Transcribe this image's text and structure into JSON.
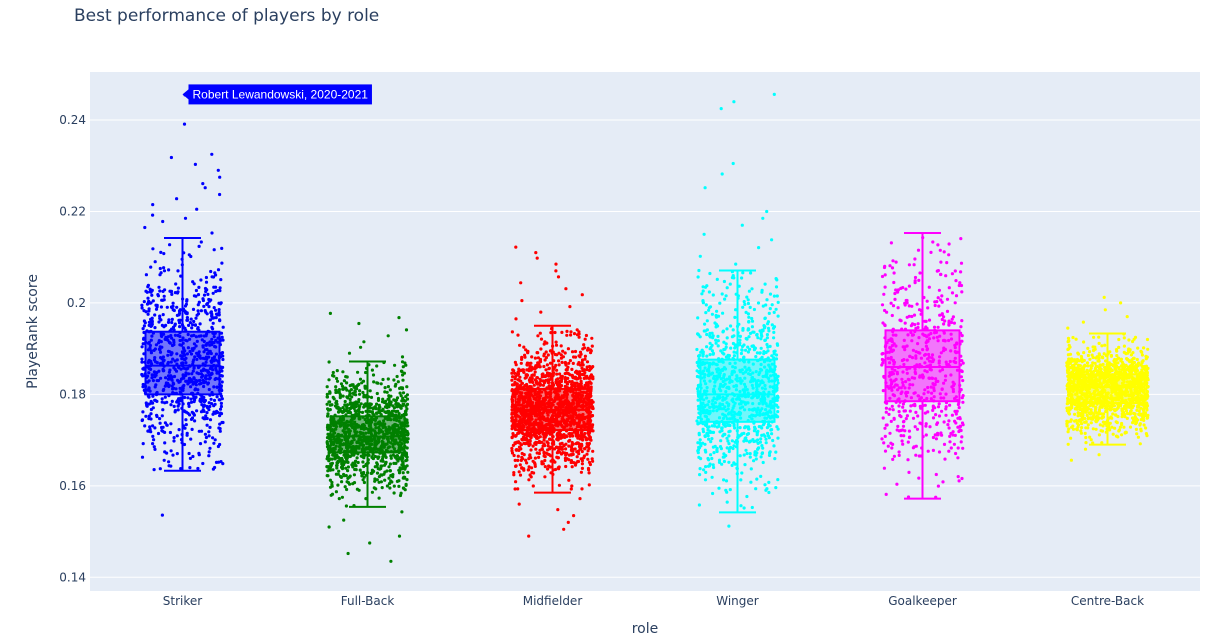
{
  "chart_data": {
    "type": "box",
    "title": "Best performance of players by role",
    "xlabel": "role",
    "ylabel": "PlayeRank score",
    "ylim": [
      0.137,
      0.2505
    ],
    "yticks": [
      0.14,
      0.16,
      0.18,
      0.2,
      0.22,
      0.24
    ],
    "ytick_labels": [
      "0.14",
      "0.16",
      "0.18",
      "0.2",
      "0.22",
      "0.24"
    ],
    "grid": true,
    "background": "#E5ECF6",
    "categories": [
      "Striker",
      "Full-Back",
      "Midfielder",
      "Winger",
      "Goalkeeper",
      "Centre-Back"
    ],
    "series": [
      {
        "category": "Striker",
        "color": "#0000ff",
        "points_shown": "all",
        "n": 900,
        "whisker_low": 0.1633,
        "q1": 0.18,
        "median": 0.1863,
        "q3": 0.1937,
        "whisker_high": 0.2142,
        "outliers": [
          0.2153,
          0.2165,
          0.2178,
          0.2185,
          0.2192,
          0.2205,
          0.2215,
          0.2228,
          0.2237,
          0.2252,
          0.2261,
          0.2275,
          0.229,
          0.2303,
          0.2318,
          0.2325,
          0.2391,
          0.2455,
          0.1536
        ]
      },
      {
        "category": "Full-Back",
        "color": "#008000",
        "points_shown": "all",
        "n": 1200,
        "whisker_low": 0.1554,
        "q1": 0.1673,
        "median": 0.1708,
        "q3": 0.1752,
        "whisker_high": 0.1872,
        "outliers": [
          0.1882,
          0.189,
          0.1903,
          0.1915,
          0.1928,
          0.1941,
          0.1955,
          0.1968,
          0.1977,
          0.1543,
          0.1525,
          0.151,
          0.149,
          0.1475,
          0.1452,
          0.1435
        ]
      },
      {
        "category": "Midfielder",
        "color": "#ff0000",
        "points_shown": "all",
        "n": 1600,
        "whisker_low": 0.1585,
        "q1": 0.1722,
        "median": 0.1766,
        "q3": 0.1812,
        "whisker_high": 0.195,
        "outliers": [
          0.1965,
          0.198,
          0.1992,
          0.2005,
          0.2018,
          0.2031,
          0.2044,
          0.2057,
          0.207,
          0.2085,
          0.2098,
          0.211,
          0.2122,
          0.1572,
          0.156,
          0.1548,
          0.1535,
          0.152,
          0.1505,
          0.149
        ]
      },
      {
        "category": "Winger",
        "color": "#00ffff",
        "points_shown": "all",
        "n": 1000,
        "whisker_low": 0.1542,
        "q1": 0.174,
        "median": 0.18,
        "q3": 0.1876,
        "whisker_high": 0.2071,
        "outliers": [
          0.2085,
          0.2102,
          0.2121,
          0.2138,
          0.215,
          0.217,
          0.2185,
          0.22,
          0.2252,
          0.2282,
          0.2305,
          0.2425,
          0.244,
          0.2456,
          0.1512
        ]
      },
      {
        "category": "Goalkeeper",
        "color": "#ff00ff",
        "points_shown": "all",
        "n": 600,
        "whisker_low": 0.1572,
        "q1": 0.1785,
        "median": 0.186,
        "q3": 0.194,
        "whisker_high": 0.2153,
        "outliers": []
      },
      {
        "category": "Centre-Back",
        "color": "#ffff00",
        "points_shown": "all",
        "n": 1300,
        "whisker_low": 0.169,
        "q1": 0.1781,
        "median": 0.1816,
        "q3": 0.1844,
        "whisker_high": 0.1933,
        "outliers": [
          0.1945,
          0.1958,
          0.197,
          0.1985,
          0.2,
          0.2012,
          0.168,
          0.1668,
          0.1656
        ]
      }
    ],
    "annotations": [
      {
        "text": "Robert Lewandowski, 2020-2021",
        "category": "Striker",
        "y": 0.2456,
        "background": "#0000ff",
        "text_color": "#ffffff"
      }
    ]
  }
}
